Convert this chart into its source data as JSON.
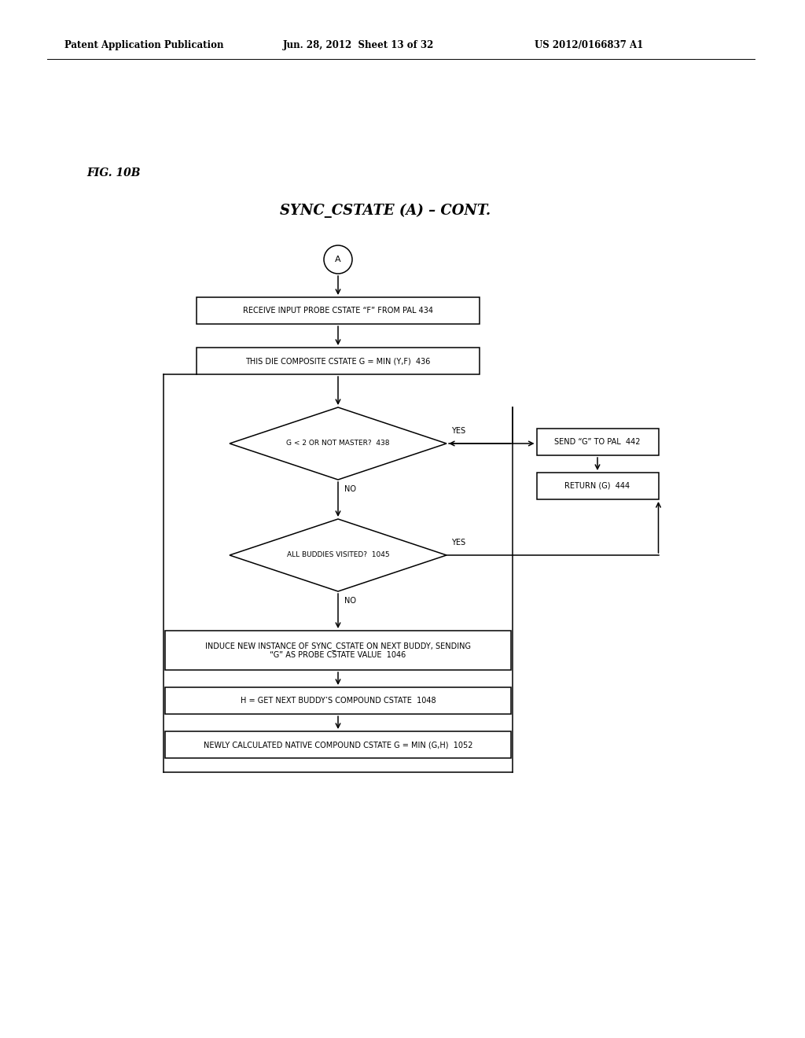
{
  "bg_color": "#ffffff",
  "header_left": "Patent Application Publication",
  "header_mid": "Jun. 28, 2012  Sheet 13 of 32",
  "header_right": "US 2012/0166837 A1",
  "fig_label": "FIG. 10B",
  "title": "SYNC_CSTATE (A) – CONT.",
  "circle_label": "A",
  "box1_text": "RECEIVE INPUT PROBE CSTATE “F” FROM PAL 434",
  "box2_text": "THIS DIE COMPOSITE CSTATE G = MIN (Y,F)  436",
  "diamond1_text": "G < 2 OR NOT MASTER?  438",
  "diamond1_yes": "YES",
  "diamond1_no": "NO",
  "box_send_text": "SEND “G” TO PAL  442",
  "box_return_text": "RETURN (G)  444",
  "diamond2_text": "ALL BUDDIES VISITED?  1045",
  "diamond2_yes": "YES",
  "diamond2_no": "NO",
  "box3_text": "INDUCE NEW INSTANCE OF SYNC_CSTATE ON NEXT BUDDY, SENDING\n“G” AS PROBE CSTATE VALUE  1046",
  "box4_text": "H = GET NEXT BUDDY’S COMPOUND CSTATE  1048",
  "box5_text": "NEWLY CALCULATED NATIVE COMPOUND CSTATE G = MIN (G,H)  1052",
  "font_size_header": 8.5,
  "font_size_title": 13,
  "font_size_figlabel": 10,
  "font_size_box": 7,
  "font_size_arrow_label": 7
}
